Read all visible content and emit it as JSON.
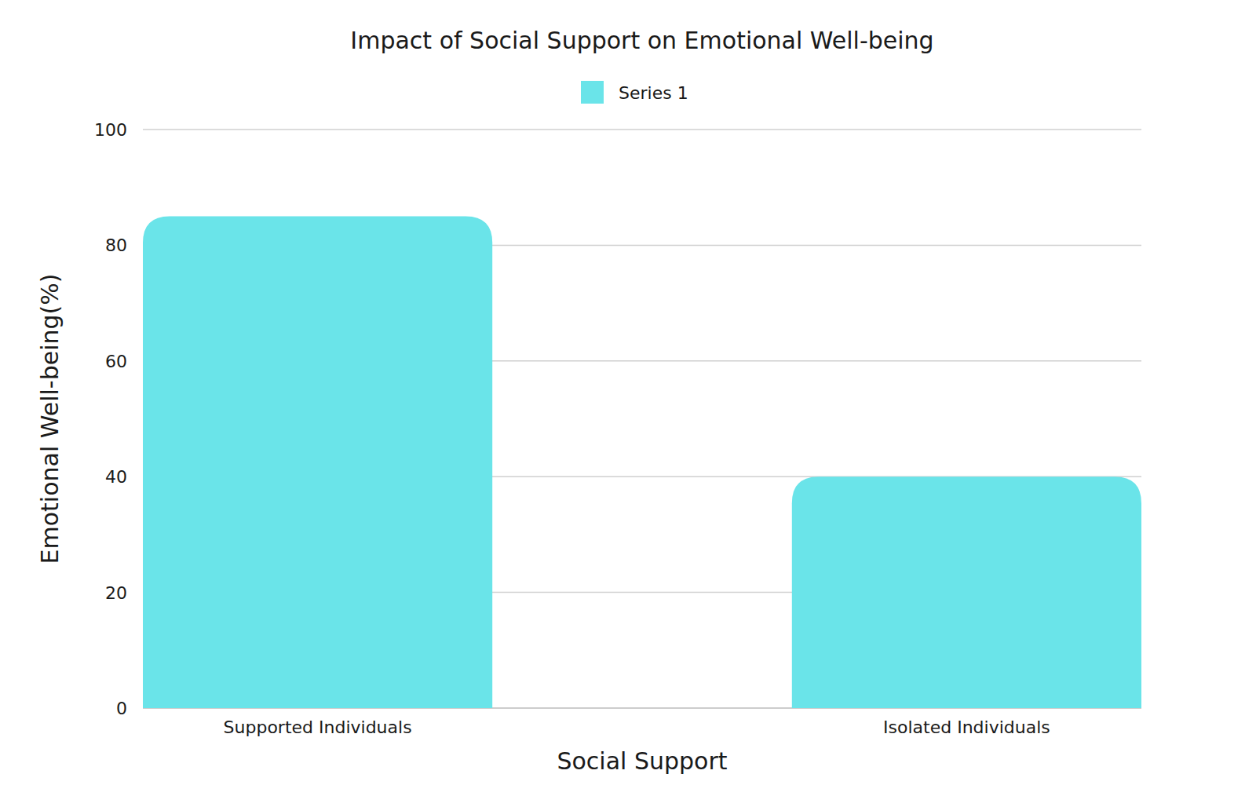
{
  "chart_data": {
    "type": "bar",
    "title": "Impact of Social Support on Emotional Well-being",
    "x_label": "Social Support",
    "y_label": "Emotional Well-being(%)",
    "categories": [
      "Supported Individuals",
      "Isolated Individuals"
    ],
    "series": [
      {
        "name": "Series 1",
        "color": "#6ae4e9",
        "values": [
          85,
          40
        ]
      }
    ],
    "ylim": [
      0,
      100
    ],
    "yticks": [
      0,
      20,
      40,
      60,
      80,
      100
    ],
    "grid": true,
    "legend": "top"
  }
}
